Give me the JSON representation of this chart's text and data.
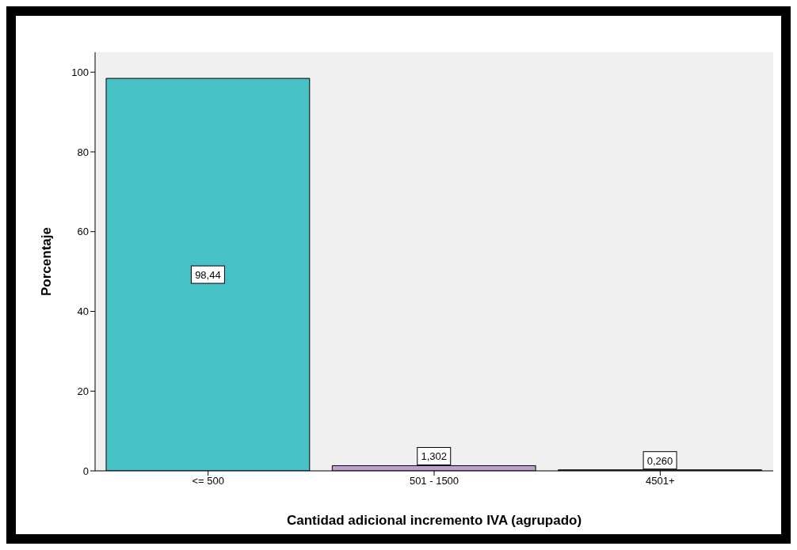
{
  "chart_data": {
    "type": "bar",
    "xlabel": "Cantidad adicional incremento IVA (agrupado)",
    "ylabel": "Porcentaje",
    "categories": [
      "<= 500",
      "501 - 1500",
      "4501+"
    ],
    "values": [
      98.44,
      1.302,
      0.26
    ],
    "value_labels": [
      "98,44",
      "1,302",
      "0,260"
    ],
    "colors": [
      "#48c1c6",
      "#c09fd0",
      "#4a7a40"
    ],
    "ylim": [
      0,
      105
    ],
    "yticks": [
      0,
      20,
      40,
      60,
      80,
      100
    ],
    "grid": false
  }
}
